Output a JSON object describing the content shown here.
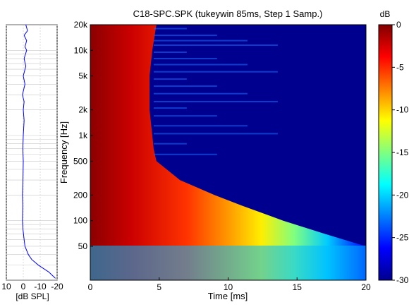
{
  "chart_data": [
    {
      "type": "line",
      "title": "",
      "xlabel": "[dB SPL]",
      "xlim": [
        10,
        -20
      ],
      "xticks": [
        {
          "value": 10,
          "label": "10"
        },
        {
          "value": 0,
          "label": "0"
        },
        {
          "value": -10,
          "label": "-10"
        },
        {
          "value": -20,
          "label": "-20"
        }
      ],
      "yscale": "log",
      "ylim": [
        20,
        20000
      ],
      "grid": true,
      "series": [
        {
          "color": "#0000ff",
          "points": [
            {
              "f": 20000,
              "db": -1.5
            },
            {
              "f": 17000,
              "db": -2.5
            },
            {
              "f": 15000,
              "db": -0.5
            },
            {
              "f": 13000,
              "db": -2.0
            },
            {
              "f": 11000,
              "db": -1.0
            },
            {
              "f": 10000,
              "db": -2.0
            },
            {
              "f": 8000,
              "db": -0.5
            },
            {
              "f": 6500,
              "db": -1.5
            },
            {
              "f": 5000,
              "db": 0.0
            },
            {
              "f": 4000,
              "db": -1.0
            },
            {
              "f": 3000,
              "db": 0.5
            },
            {
              "f": 2500,
              "db": -0.5
            },
            {
              "f": 2000,
              "db": 0.0
            },
            {
              "f": 1500,
              "db": -0.5
            },
            {
              "f": 1000,
              "db": 0.0
            },
            {
              "f": 700,
              "db": 0.3
            },
            {
              "f": 500,
              "db": 0.0
            },
            {
              "f": 300,
              "db": 0.2
            },
            {
              "f": 200,
              "db": 0.5
            },
            {
              "f": 150,
              "db": 0.3
            },
            {
              "f": 100,
              "db": 0.5
            },
            {
              "f": 80,
              "db": 0.2
            },
            {
              "f": 60,
              "db": -0.5
            },
            {
              "f": 50,
              "db": -1.0
            },
            {
              "f": 40,
              "db": -3.0
            },
            {
              "f": 35,
              "db": -5.0
            },
            {
              "f": 30,
              "db": -9.0
            },
            {
              "f": 25,
              "db": -15.0
            },
            {
              "f": 21,
              "db": -19.0
            }
          ]
        }
      ]
    },
    {
      "type": "heatmap",
      "title": "C18-SPC.SPK (tukeywin 85ms, Step 1 Samp.)",
      "xlabel": "Time [ms]",
      "ylabel": "Frequency [Hz]",
      "xlim": [
        0,
        20
      ],
      "ylim": [
        20,
        20000
      ],
      "yscale": "log",
      "xticks": [
        {
          "value": 0,
          "label": "0"
        },
        {
          "value": 5,
          "label": "5"
        },
        {
          "value": 10,
          "label": "10"
        },
        {
          "value": 15,
          "label": "15"
        },
        {
          "value": 20,
          "label": "20"
        }
      ],
      "yticks": [
        {
          "value": 20000,
          "label": "20k"
        },
        {
          "value": 10000,
          "label": "10k"
        },
        {
          "value": 5000,
          "label": "5k"
        },
        {
          "value": 2000,
          "label": "2k"
        },
        {
          "value": 1000,
          "label": "1k"
        },
        {
          "value": 500,
          "label": "500"
        },
        {
          "value": 200,
          "label": "200"
        },
        {
          "value": 100,
          "label": "100"
        },
        {
          "value": 50,
          "label": "50"
        }
      ],
      "colorbar": {
        "label": "dB",
        "range": [
          -30,
          0
        ],
        "ticks": [
          {
            "value": 0,
            "label": "0"
          },
          {
            "value": -5,
            "label": "-5"
          },
          {
            "value": -10,
            "label": "-10"
          },
          {
            "value": -15,
            "label": "-15"
          },
          {
            "value": -20,
            "label": "-20"
          },
          {
            "value": -25,
            "label": "-25"
          },
          {
            "value": -30,
            "label": "-30"
          }
        ],
        "colormap": "jet"
      },
      "decay_end_ms": [
        {
          "f": 20000,
          "t": 4.8
        },
        {
          "f": 10000,
          "t": 4.5
        },
        {
          "f": 5000,
          "t": 4.3
        },
        {
          "f": 2000,
          "t": 4.3
        },
        {
          "f": 1000,
          "t": 4.5
        },
        {
          "f": 700,
          "t": 4.6
        },
        {
          "f": 500,
          "t": 4.8
        },
        {
          "f": 300,
          "t": 6.5
        },
        {
          "f": 200,
          "t": 9.0
        },
        {
          "f": 150,
          "t": 11.0
        },
        {
          "f": 100,
          "t": 14.0
        },
        {
          "f": 70,
          "t": 17.0
        },
        {
          "f": 50,
          "t": 20.0
        },
        {
          "f": 30,
          "t": 20.0
        },
        {
          "f": 20,
          "t": 20.0
        }
      ]
    }
  ]
}
